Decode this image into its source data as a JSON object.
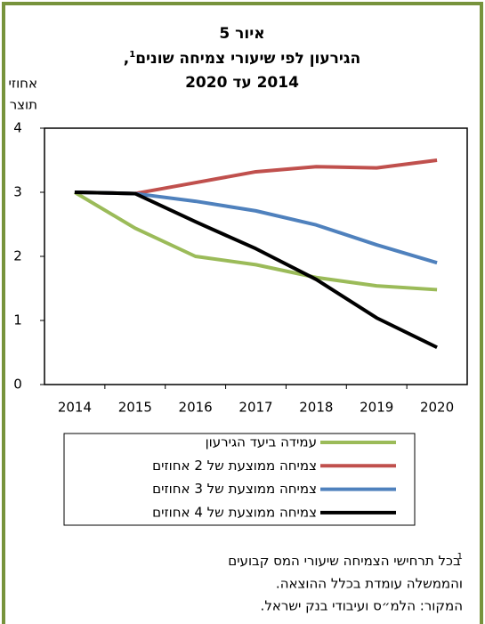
{
  "chart_data": {
    "type": "line",
    "title": "איור 5",
    "subtitle": "הגירעון לפי שיעורי צמיחה שונים",
    "subtitle_note": "1",
    "subtitle_suffix": ",",
    "subtitle2": "2014 עד 2020",
    "ylabel": [
      "אחוזי",
      "תוצר"
    ],
    "categories": [
      "2014",
      "2015",
      "2016",
      "2017",
      "2018",
      "2019",
      "2020"
    ],
    "series": [
      {
        "name": "עמידה ביעד הגירעון",
        "color": "#9bbb59",
        "values": [
          3.0,
          2.44,
          2.0,
          1.87,
          1.67,
          1.54,
          1.48
        ]
      },
      {
        "name": "צמיחה ממוצעת של 2 אחוזים",
        "color": "#c0504d",
        "values": [
          3.0,
          2.98,
          3.15,
          3.32,
          3.4,
          3.38,
          3.5
        ]
      },
      {
        "name": "צמיחה ממוצעת של 3 אחוזים",
        "color": "#4f81bd",
        "values": [
          3.0,
          2.98,
          2.86,
          2.71,
          2.49,
          2.18,
          1.9
        ]
      },
      {
        "name": "צמיחה ממוצעת של 4 אחוזים",
        "color": "#000000",
        "values": [
          3.0,
          2.98,
          2.54,
          2.12,
          1.64,
          1.04,
          0.58
        ]
      }
    ],
    "ylim": [
      0,
      4
    ],
    "yticks": [
      0,
      1,
      2,
      3,
      4
    ],
    "footnote_mark": "1",
    "notes": [
      "בכל תרחישי הצמיחה שיעורי המס קבועים",
      "והממשלה עומדת בכלל ההוצאה.",
      "המקור: הלמ״ס ועיבודי בנק ישראל."
    ]
  }
}
